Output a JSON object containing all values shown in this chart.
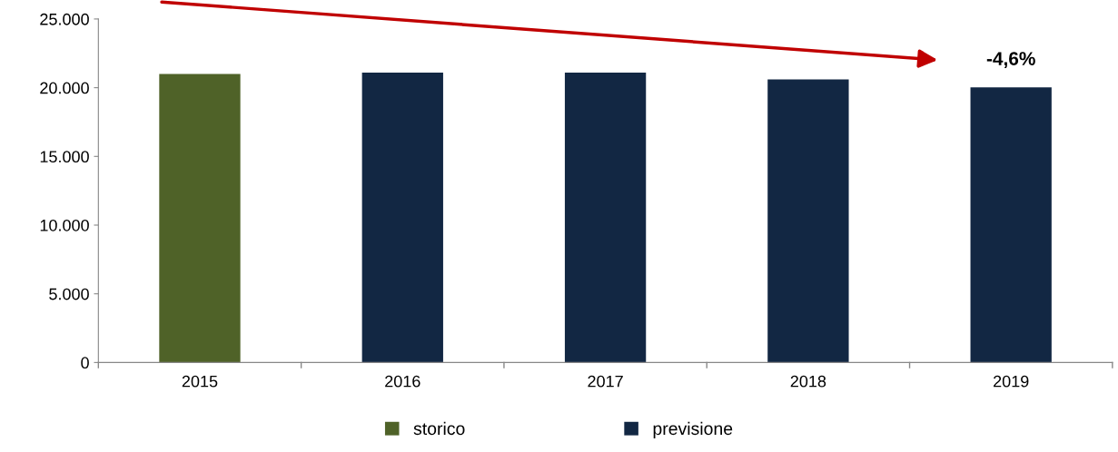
{
  "chart_data": {
    "type": "bar",
    "categories": [
      "2015",
      "2016",
      "2017",
      "2018",
      "2019"
    ],
    "series": [
      {
        "name": "storico",
        "color": "#4f6228",
        "values": [
          21000,
          null,
          null,
          null,
          null
        ]
      },
      {
        "name": "previsione",
        "color": "#122743",
        "values": [
          null,
          21100,
          21100,
          20600,
          20030
        ]
      }
    ],
    "ylim": [
      0,
      25000
    ],
    "yticks": [
      0,
      {
        "value": 5000,
        "label": "5.000"
      },
      {
        "value": 10000,
        "label": "10.000"
      },
      {
        "value": 15000,
        "label": "15.000"
      },
      {
        "value": 20000,
        "label": "20.000"
      },
      {
        "value": 25000,
        "label": "25.000"
      }
    ],
    "annotations": [
      "-4,6%"
    ],
    "grid": false,
    "legend": "bottom"
  }
}
